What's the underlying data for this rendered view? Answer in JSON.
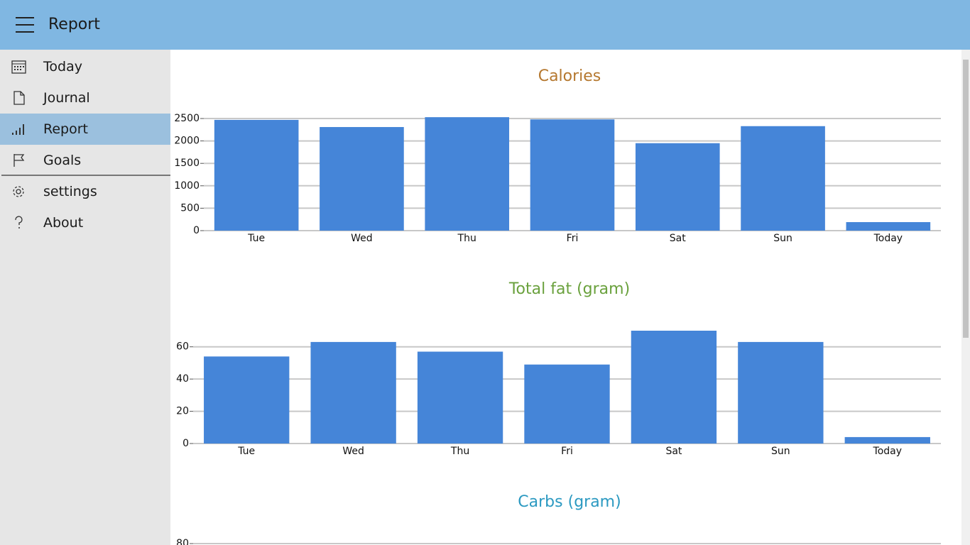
{
  "header": {
    "title": "Report"
  },
  "nav": {
    "items": [
      "Today",
      "Journal",
      "Report",
      "Goals",
      "settings",
      "About"
    ]
  },
  "chart_data": [
    {
      "type": "bar",
      "title": "Calories",
      "title_color": "#b5782f",
      "color": "#4585d8",
      "grid": true,
      "categories": [
        "Tue",
        "Wed",
        "Thu",
        "Fri",
        "Sat",
        "Sun",
        "Today"
      ],
      "values": [
        2470,
        2310,
        2530,
        2480,
        1950,
        2330,
        190
      ],
      "ylim": [
        0,
        2600
      ],
      "yticks": [
        0,
        500,
        1000,
        1500,
        2000,
        2500
      ]
    },
    {
      "type": "bar",
      "title": "Total fat (gram)",
      "title_color": "#6aa13d",
      "color": "#4585d8",
      "grid": true,
      "categories": [
        "Tue",
        "Wed",
        "Thu",
        "Fri",
        "Sat",
        "Sun",
        "Today"
      ],
      "values": [
        54,
        63,
        57,
        49,
        70,
        63,
        4
      ],
      "ylim": [
        0,
        70
      ],
      "yticks": [
        0,
        20,
        40,
        60
      ]
    },
    {
      "type": "bar",
      "title": "Carbs (gram)",
      "title_color": "#2b99c1",
      "color": "#4585d8",
      "grid": true,
      "yticks": [
        80
      ]
    }
  ]
}
